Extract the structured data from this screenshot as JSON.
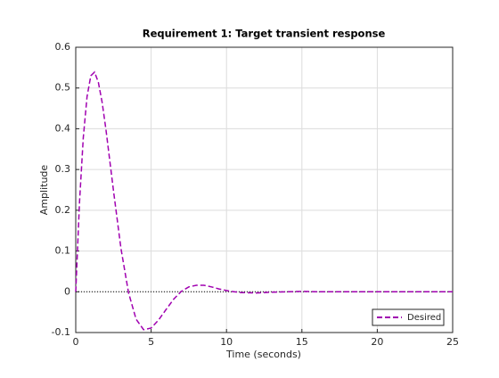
{
  "chart_data": {
    "type": "line",
    "title": "Requirement 1: Target transient response",
    "x_label": "Time (seconds)",
    "y_label": "Amplitude",
    "x": [
      0,
      0.25,
      0.5,
      0.75,
      1,
      1.25,
      1.5,
      1.75,
      2,
      2.5,
      3,
      3.5,
      4,
      4.5,
      5,
      5.5,
      6,
      6.5,
      7,
      7.5,
      8,
      8.5,
      9,
      9.5,
      10,
      10.5,
      11,
      12,
      13,
      14,
      15,
      16,
      17,
      18,
      19,
      20,
      21,
      22,
      23,
      24,
      25
    ],
    "series": [
      {
        "name": "Desired",
        "color": "#a000b0",
        "values": [
          0,
          0.22,
          0.378,
          0.479,
          0.53,
          0.539,
          0.514,
          0.465,
          0.399,
          0.249,
          0.106,
          -0.002,
          -0.067,
          -0.093,
          -0.089,
          -0.069,
          -0.043,
          -0.018,
          0.001,
          0.012,
          0.016,
          0.016,
          0.012,
          0.007,
          0.003,
          0,
          -0.002,
          -0.003,
          -0.001,
          0,
          0.001,
          0,
          0,
          0,
          0,
          0,
          0,
          0,
          0,
          0,
          0
        ]
      }
    ],
    "reference_line": 0,
    "xlim": [
      0,
      25
    ],
    "xticks": [
      0,
      5,
      10,
      15,
      20,
      25
    ],
    "ylim": [
      -0.1,
      0.6
    ],
    "yticks": [
      -0.1,
      0,
      0.1,
      0.2,
      0.3,
      0.4,
      0.5,
      0.6
    ],
    "grid": true,
    "legend": "lower right"
  }
}
